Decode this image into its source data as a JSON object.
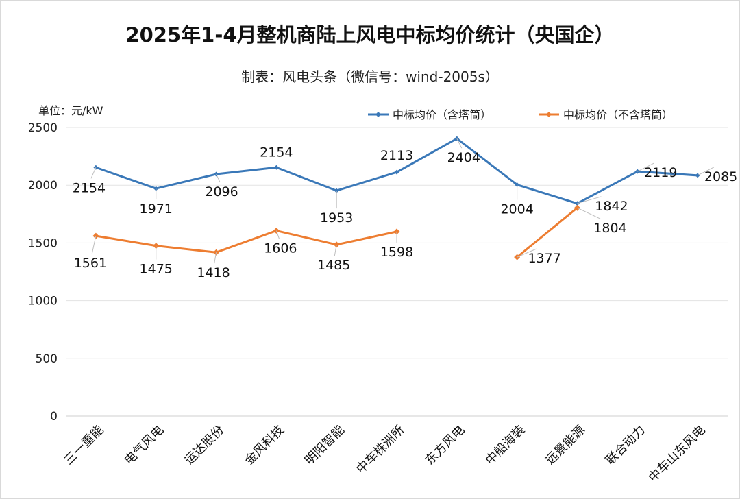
{
  "chart_data": {
    "type": "line",
    "title": "2025年1-4月整机商陆上风电中标均价统计（央国企）",
    "subtitle": "制表：风电头条（微信号：wind-2005s）",
    "unit_label": "单位：元/kW",
    "ylim": [
      0,
      2500
    ],
    "yticks": [
      0,
      500,
      1000,
      1500,
      2000,
      2500
    ],
    "grid": true,
    "legend_position": "top-right",
    "categories": [
      "三一重能",
      "电气风电",
      "运达股份",
      "金风科技",
      "明阳智能",
      "中车株洲所",
      "东方风电",
      "中船海装",
      "远景能源",
      "联合动力",
      "中车山东风电"
    ],
    "series": [
      {
        "name": "中标均价（含塔筒）",
        "color": "#3a78b8",
        "values": [
          2154,
          1971,
          2096,
          2154,
          1953,
          2113,
          2404,
          2004,
          1842,
          2119,
          2085
        ]
      },
      {
        "name": "中标均价（不含塔筒）",
        "color": "#ed7d31",
        "values": [
          1561,
          1475,
          1418,
          1606,
          1485,
          1598,
          null,
          1377,
          1804,
          null,
          null
        ]
      }
    ]
  }
}
